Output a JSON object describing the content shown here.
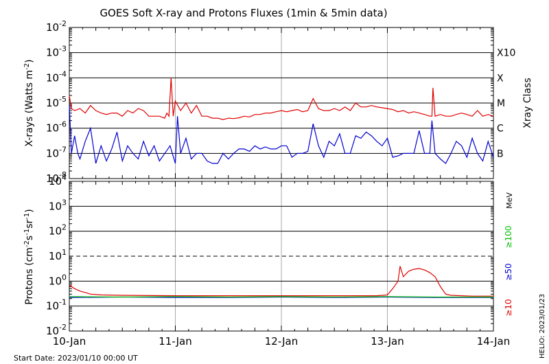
{
  "chart_data": [
    {
      "type": "line",
      "title": "GOES Soft X-ray and Protons Fluxes   (1min & 5min data)",
      "ylabel_main": "X-rays (Watts m",
      "ylabel_exp": "-2",
      "ylabel_close": ")",
      "yscale": "log",
      "ylim": [
        1e-08,
        0.01
      ],
      "y_ticks": [
        {
          "base": "10",
          "exp": "-2",
          "value": 0.01
        },
        {
          "base": "10",
          "exp": "-3",
          "value": 0.001
        },
        {
          "base": "10",
          "exp": "-4",
          "value": 0.0001
        },
        {
          "base": "10",
          "exp": "-5",
          "value": 1e-05
        },
        {
          "base": "10",
          "exp": "-6",
          "value": 1e-06
        },
        {
          "base": "10",
          "exp": "-7",
          "value": 1e-07
        },
        {
          "base": "10",
          "exp": "-8",
          "value": 1e-08
        }
      ],
      "class_axis_label": "Xray Class",
      "classes": [
        {
          "label": "X10",
          "value": 0.001
        },
        {
          "label": "X",
          "value": 0.0001
        },
        {
          "label": "M",
          "value": 1e-05
        },
        {
          "label": "C",
          "value": 1e-06
        },
        {
          "label": "B",
          "value": 1e-07
        }
      ],
      "grid": true,
      "series": [
        {
          "color": "#e00000",
          "x": [
            0,
            0.02,
            0.05,
            0.1,
            0.15,
            0.2,
            0.25,
            0.3,
            0.35,
            0.4,
            0.45,
            0.5,
            0.55,
            0.6,
            0.65,
            0.7,
            0.75,
            0.8,
            0.85,
            0.9,
            0.92,
            0.94,
            0.96,
            0.98,
            1.0,
            1.05,
            1.1,
            1.15,
            1.2,
            1.25,
            1.3,
            1.35,
            1.4,
            1.45,
            1.5,
            1.55,
            1.6,
            1.65,
            1.7,
            1.75,
            1.8,
            1.85,
            1.9,
            1.95,
            2.0,
            2.05,
            2.1,
            2.15,
            2.2,
            2.25,
            2.3,
            2.35,
            2.4,
            2.45,
            2.5,
            2.55,
            2.6,
            2.65,
            2.7,
            2.75,
            2.8,
            2.85,
            2.9,
            2.95,
            3.0,
            3.05,
            3.1,
            3.15,
            3.2,
            3.25,
            3.3,
            3.35,
            3.4,
            3.42,
            3.43,
            3.45,
            3.5,
            3.55,
            3.6,
            3.65,
            3.7,
            3.75,
            3.8,
            3.85,
            3.9,
            3.95,
            4.0
          ],
          "y": [
            2e-05,
            6e-06,
            5e-06,
            6e-06,
            4e-06,
            8e-06,
            5e-06,
            4e-06,
            3.5e-06,
            4e-06,
            4e-06,
            3e-06,
            5e-06,
            4e-06,
            6e-06,
            5e-06,
            3e-06,
            3e-06,
            3e-06,
            2.5e-06,
            4e-06,
            3e-06,
            0.0001,
            3e-06,
            1.2e-05,
            5e-06,
            1e-05,
            4e-06,
            8e-06,
            3e-06,
            3e-06,
            2.5e-06,
            2.5e-06,
            2.2e-06,
            2.5e-06,
            2.4e-06,
            2.6e-06,
            3e-06,
            2.8e-06,
            3.5e-06,
            3.5e-06,
            4e-06,
            4e-06,
            4.5e-06,
            5e-06,
            4.5e-06,
            5e-06,
            5.5e-06,
            4.5e-06,
            5e-06,
            1.5e-05,
            6e-06,
            5e-06,
            5e-06,
            6e-06,
            5e-06,
            7e-06,
            5e-06,
            1e-05,
            7e-06,
            7e-06,
            8e-06,
            7e-06,
            6.5e-06,
            6e-06,
            5.5e-06,
            4.5e-06,
            5e-06,
            4e-06,
            4.5e-06,
            4e-06,
            3.5e-06,
            3e-06,
            3e-06,
            4e-05,
            3e-06,
            3.5e-06,
            3e-06,
            3e-06,
            3.5e-06,
            4e-06,
            3.5e-06,
            3e-06,
            5e-06,
            3e-06,
            3.5e-06,
            3e-06
          ]
        },
        {
          "color": "#0000d0",
          "x": [
            0,
            0.02,
            0.05,
            0.08,
            0.1,
            0.15,
            0.2,
            0.25,
            0.3,
            0.35,
            0.4,
            0.45,
            0.5,
            0.55,
            0.6,
            0.65,
            0.7,
            0.75,
            0.8,
            0.85,
            0.9,
            0.95,
            1.0,
            1.02,
            1.05,
            1.1,
            1.15,
            1.2,
            1.25,
            1.3,
            1.35,
            1.4,
            1.45,
            1.5,
            1.55,
            1.6,
            1.65,
            1.7,
            1.75,
            1.8,
            1.85,
            1.9,
            1.95,
            2.0,
            2.05,
            2.1,
            2.15,
            2.2,
            2.25,
            2.3,
            2.35,
            2.4,
            2.45,
            2.5,
            2.55,
            2.6,
            2.65,
            2.7,
            2.75,
            2.8,
            2.85,
            2.9,
            2.95,
            3.0,
            3.05,
            3.1,
            3.15,
            3.2,
            3.25,
            3.3,
            3.35,
            3.4,
            3.42,
            3.45,
            3.5,
            3.55,
            3.6,
            3.65,
            3.7,
            3.75,
            3.8,
            3.85,
            3.9,
            3.95,
            4.0
          ],
          "y": [
            8e-06,
            1e-07,
            5e-07,
            1e-07,
            6e-08,
            3e-07,
            1e-06,
            4e-08,
            2e-07,
            5e-08,
            1.5e-07,
            7e-07,
            5e-08,
            2e-07,
            1e-07,
            6e-08,
            3e-07,
            8e-08,
            2e-07,
            5e-08,
            1e-07,
            2e-07,
            4e-08,
            3e-06,
            1e-07,
            4e-07,
            6e-08,
            1e-07,
            1e-07,
            5e-08,
            4e-08,
            4e-08,
            1e-07,
            6e-08,
            1e-07,
            1.5e-07,
            1.5e-07,
            1.2e-07,
            2e-07,
            1.5e-07,
            1.8e-07,
            1.5e-07,
            1.5e-07,
            2e-07,
            2e-07,
            7e-08,
            1e-07,
            1e-07,
            1.2e-07,
            1.5e-06,
            2e-07,
            7e-08,
            3e-07,
            2e-07,
            6e-07,
            1e-07,
            1e-07,
            5e-07,
            4e-07,
            7e-07,
            5e-07,
            3e-07,
            2e-07,
            4e-07,
            7e-08,
            8e-08,
            1e-07,
            1e-07,
            1e-07,
            8e-07,
            1e-07,
            1e-07,
            2e-06,
            1e-07,
            6e-08,
            4e-08,
            1e-07,
            3e-07,
            2e-07,
            7e-08,
            4e-07,
            1e-07,
            5e-08,
            3e-07,
            7e-08
          ]
        }
      ]
    },
    {
      "type": "line",
      "ylabel_main": "Protons (cm",
      "ylabel_exp1": "-2",
      "ylabel_mid": "s",
      "ylabel_exp2": "-1",
      "ylabel_mid2": "sr",
      "ylabel_exp3": "-1",
      "ylabel_close": ")",
      "yscale": "log",
      "ylim": [
        0.01,
        10000
      ],
      "y_ticks": [
        {
          "base": "10",
          "exp": "4",
          "value": 10000
        },
        {
          "base": "10",
          "exp": "3",
          "value": 1000
        },
        {
          "base": "10",
          "exp": "2",
          "value": 100
        },
        {
          "base": "10",
          "exp": "1",
          "value": 10
        },
        {
          "base": "10",
          "exp": "0",
          "value": 1
        },
        {
          "base": "10",
          "exp": "-1",
          "value": 0.1
        },
        {
          "base": "10",
          "exp": "-2",
          "value": 0.01
        }
      ],
      "threshold_value": 10,
      "energy_unit": "MeV",
      "grid": true,
      "series": [
        {
          "name": "≥10",
          "color": "#e00000",
          "x": [
            0,
            0.05,
            0.1,
            0.15,
            0.2,
            0.3,
            0.5,
            1.0,
            1.5,
            2.0,
            2.5,
            2.9,
            3.0,
            3.05,
            3.1,
            3.12,
            3.15,
            3.2,
            3.25,
            3.3,
            3.35,
            3.4,
            3.45,
            3.5,
            3.55,
            3.6,
            3.7,
            3.8,
            4.0
          ],
          "y": [
            0.7,
            0.5,
            0.4,
            0.35,
            0.3,
            0.28,
            0.27,
            0.26,
            0.26,
            0.26,
            0.26,
            0.26,
            0.28,
            0.5,
            1.0,
            4.0,
            1.5,
            2.5,
            3.0,
            3.2,
            2.8,
            2.2,
            1.5,
            0.6,
            0.3,
            0.27,
            0.26,
            0.25,
            0.25
          ]
        },
        {
          "name": "≥50",
          "color": "#0000d0",
          "x": [
            0,
            0.5,
            1.0,
            1.5,
            2.0,
            2.5,
            3.0,
            3.5,
            4.0
          ],
          "y": [
            0.22,
            0.23,
            0.22,
            0.22,
            0.23,
            0.22,
            0.23,
            0.22,
            0.22
          ]
        },
        {
          "name": "≥100",
          "color": "#00c000",
          "x": [
            0,
            0.5,
            1.0,
            1.5,
            2.0,
            2.5,
            3.0,
            3.5,
            4.0
          ],
          "y": [
            0.24,
            0.23,
            0.24,
            0.23,
            0.24,
            0.23,
            0.24,
            0.23,
            0.23
          ]
        }
      ]
    }
  ],
  "x_ticks": [
    "10-Jan",
    "11-Jan",
    "12-Jan",
    "13-Jan",
    "14-Jan"
  ],
  "footer": {
    "start_date": "Start Date: 2023/01/10 00:00 UT",
    "credit": "HELIO: 2023/01/23"
  }
}
